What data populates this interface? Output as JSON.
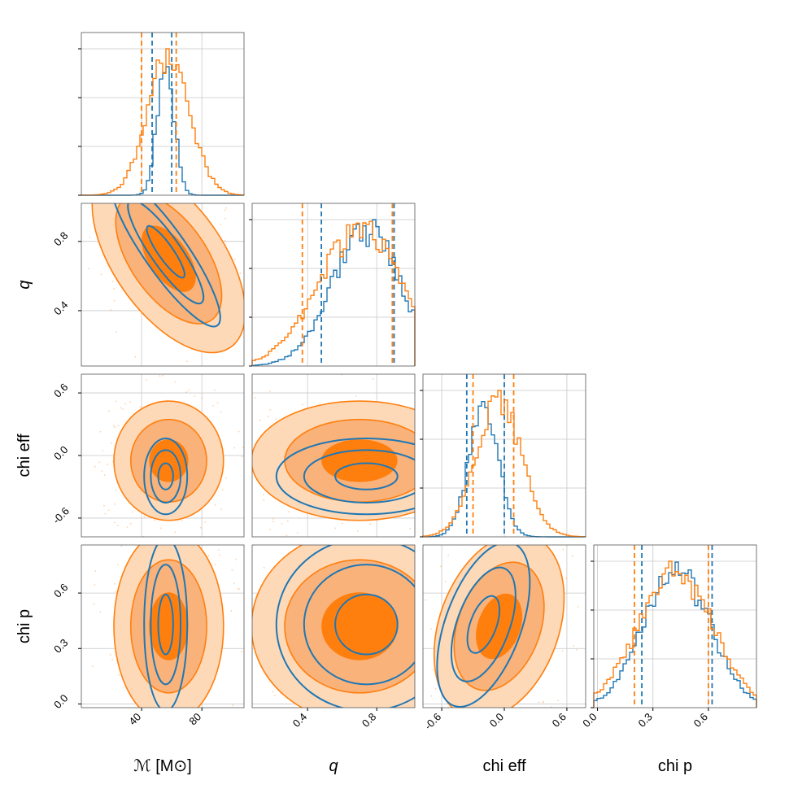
{
  "chart_data": {
    "type": "corner",
    "parameters": [
      {
        "key": "mc",
        "label": "ℳ [M⊙]",
        "range": [
          0,
          108
        ],
        "ticks": [
          40,
          80
        ],
        "tick_labels": [
          "40",
          "80"
        ]
      },
      {
        "key": "q",
        "label": "q",
        "range": [
          0.08,
          1.02
        ],
        "ticks": [
          0.4,
          0.8
        ],
        "tick_labels": [
          "0.4",
          "0.8"
        ]
      },
      {
        "key": "chi_eff",
        "label": "chi eff",
        "range": [
          -0.78,
          0.78
        ],
        "ticks": [
          -0.6,
          0.0,
          0.6
        ],
        "tick_labels": [
          "-0.6",
          "0.0",
          "0.6"
        ]
      },
      {
        "key": "chi_p",
        "label": "chi p",
        "range": [
          -0.02,
          0.86
        ],
        "ticks": [
          0.0,
          0.3,
          0.6
        ],
        "tick_labels": [
          "0.0",
          "0.3",
          "0.6"
        ]
      }
    ],
    "series": [
      {
        "color": "#1f77b4",
        "mean": [
          56,
          0.74,
          -0.2,
          0.43
        ],
        "sd": [
          5.5,
          0.2,
          0.14,
          0.18
        ],
        "corr": 0.15,
        "intervals": [
          [
            47,
            60
          ],
          [
            0.48,
            0.9
          ],
          [
            -0.36,
            0.0
          ],
          [
            0.24,
            0.62
          ]
        ]
      },
      {
        "color": "#ff7f0e",
        "mean": [
          58,
          0.7,
          -0.05,
          0.42
        ],
        "sd": [
          14,
          0.24,
          0.22,
          0.2
        ],
        "corr": 0.55,
        "intervals": [
          [
            40,
            63
          ],
          [
            0.37,
            0.89
          ],
          [
            -0.3,
            0.09
          ],
          [
            0.2,
            0.6
          ]
        ]
      }
    ],
    "contour_levels": [
      "39%",
      "86%",
      "99%"
    ],
    "grid": true
  }
}
